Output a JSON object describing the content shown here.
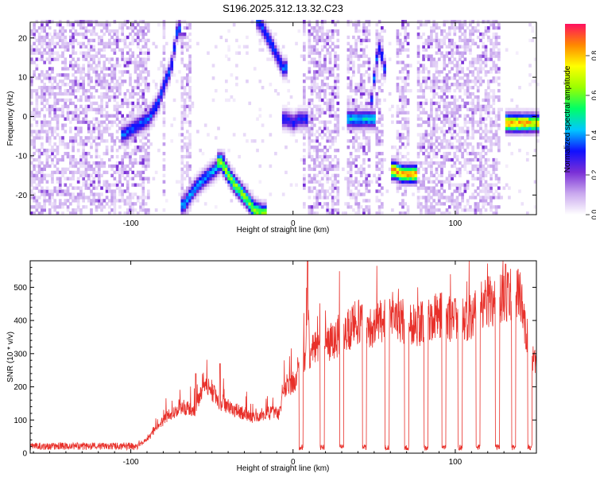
{
  "title": "S196.2025.312.13.32.C23",
  "chart_data": [
    {
      "type": "heatmap",
      "xlabel": "Height of straight line (km)",
      "ylabel": "Frequency (Hz)",
      "xlim": [
        -162,
        150
      ],
      "ylim": [
        -25,
        24
      ],
      "x_ticks": [
        -100,
        0,
        100
      ],
      "x_tick_labels": [
        "-100",
        "0",
        "100"
      ],
      "y_ticks": [
        -20,
        -10,
        0,
        10,
        20
      ],
      "y_tick_labels": [
        "-20",
        "-10",
        "0",
        "10",
        "20"
      ],
      "colorbar": {
        "label": "Normalized spectral amplitude",
        "range": [
          0,
          0.96
        ],
        "ticks": [
          0,
          0.2,
          0.4,
          0.6,
          0.8
        ],
        "tick_labels": [
          "0.0",
          "0.2",
          "0.4",
          "0.6",
          "0.8"
        ],
        "colormap": [
          "#ffffff",
          "#c9a8ee",
          "#7a2fd6",
          "#1010ff",
          "#00c8ff",
          "#00ff66",
          "#9bff00",
          "#ffff00",
          "#ff8800",
          "#ff1060"
        ]
      },
      "ridges": [
        {
          "x": [
            -105,
            -98,
            -90,
            -84,
            -80,
            -76,
            -72
          ],
          "y": [
            -5,
            -3,
            -1,
            3,
            8,
            12,
            22
          ],
          "peak": 0.4
        },
        {
          "x": [
            -68,
            -62,
            -55,
            -49,
            -45
          ],
          "y": [
            -23,
            -19,
            -16,
            -14,
            -12
          ],
          "peak": 0.45
        },
        {
          "x": [
            -45,
            -38,
            -30,
            -25,
            -20
          ],
          "y": [
            -12,
            -17,
            -21,
            -24,
            -25
          ],
          "peak": 0.7
        },
        {
          "x": [
            -22,
            -14,
            -7
          ],
          "y": [
            24,
            18,
            12
          ],
          "peak": 0.4
        },
        {
          "x": [
            -5,
            0,
            2,
            6
          ],
          "y": [
            -1,
            -2,
            -1,
            -1
          ],
          "peak": 0.35
        },
        {
          "x": [
            35,
            42,
            48
          ],
          "y": [
            -1,
            -1,
            -1
          ],
          "peak": 0.5
        },
        {
          "x": [
            48,
            50,
            53,
            55
          ],
          "y": [
            4,
            13,
            18,
            12
          ],
          "peak": 0.4
        },
        {
          "x": [
            62,
            66,
            70,
            73
          ],
          "y": [
            -14,
            -15,
            -15,
            -15
          ],
          "peak": 0.9
        },
        {
          "x": [
            132,
            137,
            142
          ],
          "y": [
            -2,
            -2,
            -2
          ],
          "peak": 0.92
        },
        {
          "x": [
            145,
            149
          ],
          "y": [
            -2,
            -2
          ],
          "peak": 0.85
        }
      ],
      "quiet_bands_x": [
        [
          -90,
          -82
        ],
        [
          -80,
          -70
        ],
        [
          -64,
          5
        ],
        [
          7,
          9
        ],
        [
          28,
          32
        ],
        [
          46,
          50
        ],
        [
          55,
          62
        ],
        [
          71,
          76
        ],
        [
          127,
          150
        ]
      ],
      "noise_density": 0.55
    },
    {
      "type": "line",
      "xlabel": "Height of straight line (km)",
      "ylabel": "SNR (10 * v/v)",
      "xlim": [
        -162,
        150
      ],
      "ylim": [
        0,
        580
      ],
      "x_ticks": [
        -100,
        0,
        100
      ],
      "x_tick_labels": [
        "-100",
        "0",
        "100"
      ],
      "y_ticks": [
        0,
        100,
        200,
        300,
        400,
        500
      ],
      "y_tick_labels": [
        "0",
        "100",
        "200",
        "300",
        "400",
        "500"
      ],
      "line_color": "#e8302a",
      "series_anchors": {
        "x": [
          -162,
          -120,
          -95,
          -90,
          -80,
          -70,
          -60,
          -55,
          -45,
          -35,
          -25,
          -15,
          -8,
          -5,
          0,
          5,
          8,
          9,
          10,
          20,
          30,
          40,
          50,
          60,
          70,
          80,
          90,
          100,
          110,
          120,
          130,
          140,
          145,
          150
        ],
        "y": [
          20,
          20,
          25,
          40,
          100,
          140,
          130,
          220,
          150,
          130,
          110,
          120,
          120,
          200,
          210,
          260,
          290,
          570,
          300,
          330,
          350,
          400,
          380,
          420,
          380,
          390,
          420,
          400,
          410,
          460,
          470,
          480,
          330,
          250
        ]
      },
      "dropouts_x": [
        5,
        18,
        30,
        44,
        58,
        70,
        82,
        93,
        103,
        114,
        126,
        136,
        146
      ],
      "spikes": [
        {
          "x": 9,
          "y": 580
        },
        {
          "x": -60,
          "y": 240
        },
        {
          "x": -45,
          "y": 270
        },
        {
          "x": 131,
          "y": 570
        }
      ]
    }
  ]
}
